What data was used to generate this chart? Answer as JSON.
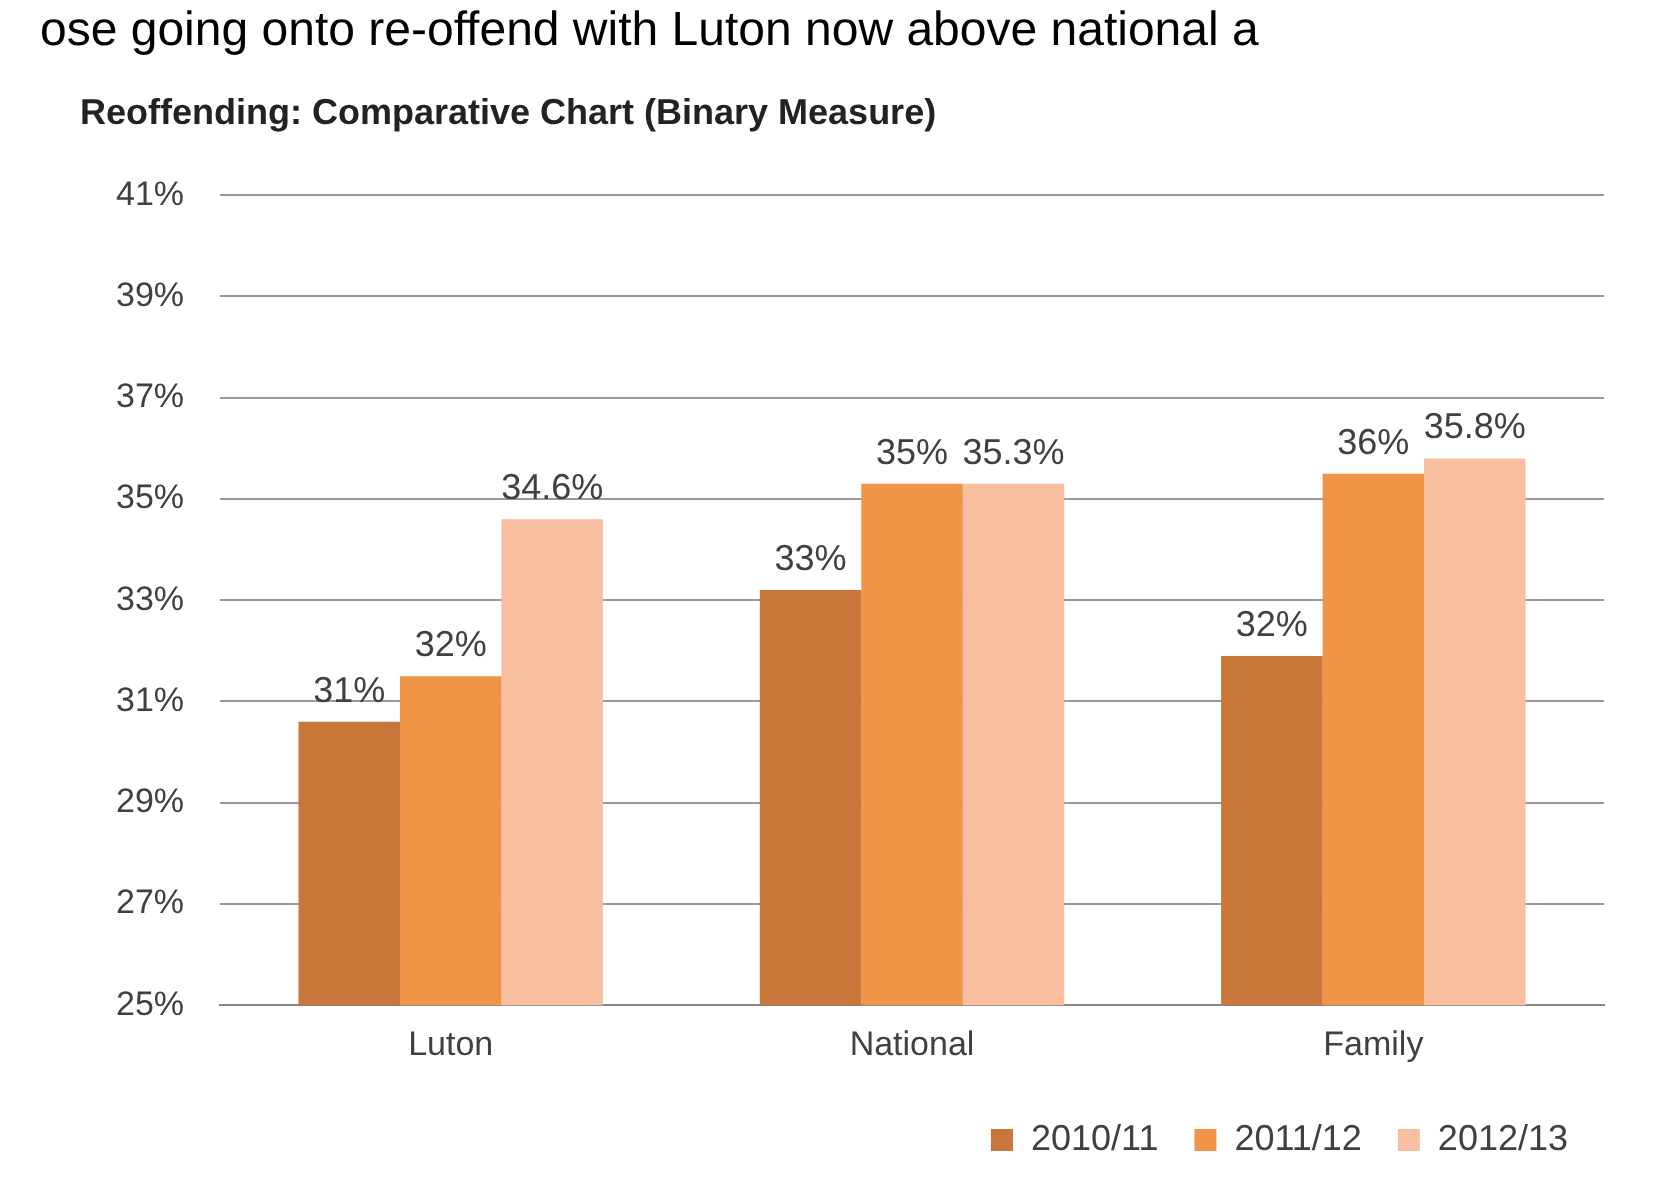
{
  "chart_data": {
    "type": "bar",
    "title": "Reoffending: Comparative Chart (Binary Measure)",
    "annotations": [
      "ose going onto re-offend with Luton now above national a"
    ],
    "categories": [
      "Luton",
      "National",
      "Family"
    ],
    "series": [
      {
        "name": "2010/11",
        "color": "#c9763a",
        "values": [
          30.6,
          33.2,
          31.9
        ],
        "value_labels": [
          "31%",
          "33%",
          "32%"
        ]
      },
      {
        "name": "2011/12",
        "color": "#f09448",
        "values": [
          31.5,
          35.3,
          35.5
        ],
        "value_labels": [
          "32%",
          "35%",
          "36%"
        ]
      },
      {
        "name": "2012/13",
        "color": "#f7bf9f",
        "values": [
          34.6,
          35.3,
          35.8
        ],
        "value_labels": [
          "34.6%",
          "35.3%",
          "35.8%"
        ]
      }
    ],
    "ylim": [
      25,
      41
    ],
    "yticks": [
      {
        "value": 25,
        "label": "25%"
      },
      {
        "value": 27,
        "label": "27%"
      },
      {
        "value": 29,
        "label": "29%"
      },
      {
        "value": 31,
        "label": "31%"
      },
      {
        "value": 33,
        "label": "33%"
      },
      {
        "value": 35,
        "label": "35%"
      },
      {
        "value": 37,
        "label": "37%"
      },
      {
        "value": 39,
        "label": "39%"
      },
      {
        "value": 41,
        "label": "41%"
      }
    ],
    "grid": "y",
    "legend": "bottom right"
  }
}
